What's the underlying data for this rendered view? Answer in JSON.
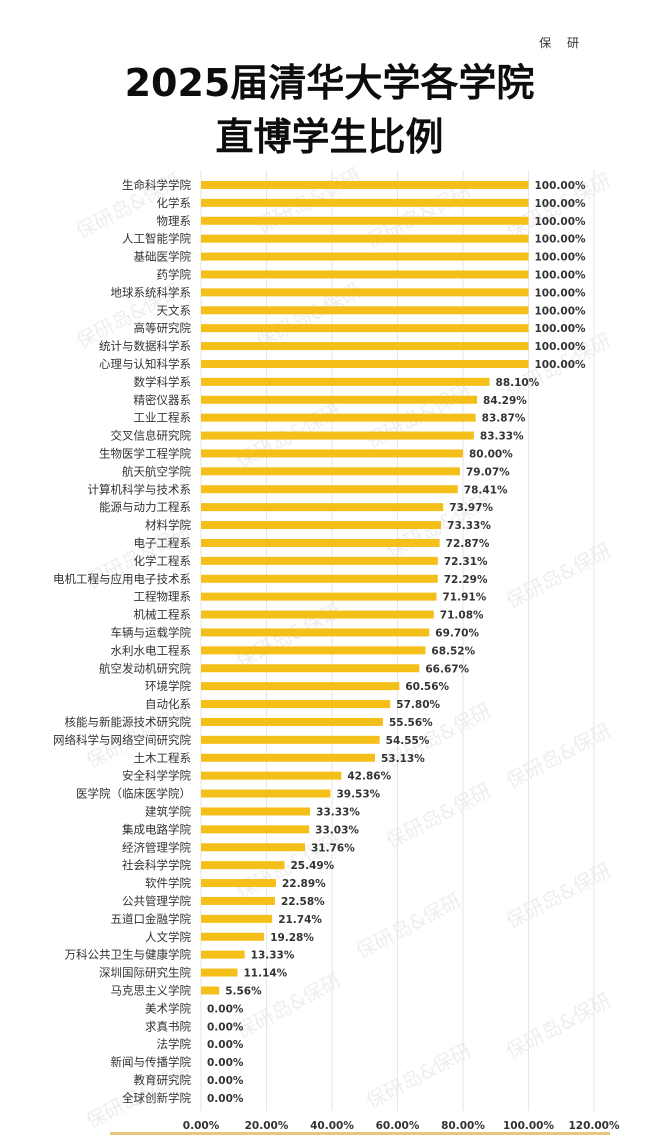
{
  "header": {
    "brand": "保 研",
    "title_line1": "2025届清华大学各学院",
    "title_line2": "直博学生比例"
  },
  "watermark": "保研岛&保研",
  "colors": {
    "bar": "#F5BF1A",
    "grid": "#e6e6e6",
    "label": "#333333",
    "value": "#333333"
  },
  "chart_data": {
    "type": "bar",
    "orientation": "horizontal",
    "title": "2025届清华大学各学院直博学生比例",
    "xlim": [
      0,
      120
    ],
    "xticks": [
      "0.00%",
      "20.00%",
      "40.00%",
      "60.00%",
      "80.00%",
      "100.00%",
      "120.00%"
    ],
    "xtick_values": [
      0,
      20,
      40,
      60,
      80,
      100,
      120
    ],
    "grid": true,
    "categories": [
      "生命科学学院",
      "化学系",
      "物理系",
      "人工智能学院",
      "基础医学院",
      "药学院",
      "地球系统科学系",
      "天文系",
      "高等研究院",
      "统计与数据科学系",
      "心理与认知科学系",
      "数学科学系",
      "精密仪器系",
      "工业工程系",
      "交叉信息研究院",
      "生物医学工程学院",
      "航天航空学院",
      "计算机科学与技术系",
      "能源与动力工程系",
      "材料学院",
      "电子工程系",
      "化学工程系",
      "电机工程与应用电子技术系",
      "工程物理系",
      "机械工程系",
      "车辆与运载学院",
      "水利水电工程系",
      "航空发动机研究院",
      "环境学院",
      "自动化系",
      "核能与新能源技术研究院",
      "网络科学与网络空间研究院",
      "土木工程系",
      "安全科学学院",
      "医学院（临床医学院）",
      "建筑学院",
      "集成电路学院",
      "经济管理学院",
      "社会科学学院",
      "软件学院",
      "公共管理学院",
      "五道口金融学院",
      "人文学院",
      "万科公共卫生与健康学院",
      "深圳国际研究生院",
      "马克思主义学院",
      "美术学院",
      "求真书院",
      "法学院",
      "新闻与传播学院",
      "教育研究院",
      "全球创新学院"
    ],
    "values": [
      100,
      100,
      100,
      100,
      100,
      100,
      100,
      100,
      100,
      100,
      100,
      88.1,
      84.29,
      83.87,
      83.33,
      80.0,
      79.07,
      78.41,
      73.97,
      73.33,
      72.87,
      72.31,
      72.29,
      71.91,
      71.08,
      69.7,
      68.52,
      66.67,
      60.56,
      57.8,
      55.56,
      54.55,
      53.13,
      42.86,
      39.53,
      33.33,
      33.03,
      31.76,
      25.49,
      22.89,
      22.58,
      21.74,
      19.28,
      13.33,
      11.14,
      5.56,
      0,
      0,
      0,
      0,
      0,
      0
    ],
    "value_labels": [
      "100.00%",
      "100.00%",
      "100.00%",
      "100.00%",
      "100.00%",
      "100.00%",
      "100.00%",
      "100.00%",
      "100.00%",
      "100.00%",
      "100.00%",
      "88.10%",
      "84.29%",
      "83.87%",
      "83.33%",
      "80.00%",
      "79.07%",
      "78.41%",
      "73.97%",
      "73.33%",
      "72.87%",
      "72.31%",
      "72.29%",
      "71.91%",
      "71.08%",
      "69.70%",
      "68.52%",
      "66.67%",
      "60.56%",
      "57.80%",
      "55.56%",
      "54.55%",
      "53.13%",
      "42.86%",
      "39.53%",
      "33.33%",
      "33.03%",
      "31.76%",
      "25.49%",
      "22.89%",
      "22.58%",
      "21.74%",
      "19.28%",
      "13.33%",
      "11.14%",
      "5.56%",
      "0.00%",
      "0.00%",
      "0.00%",
      "0.00%",
      "0.00%",
      "0.00%"
    ]
  }
}
